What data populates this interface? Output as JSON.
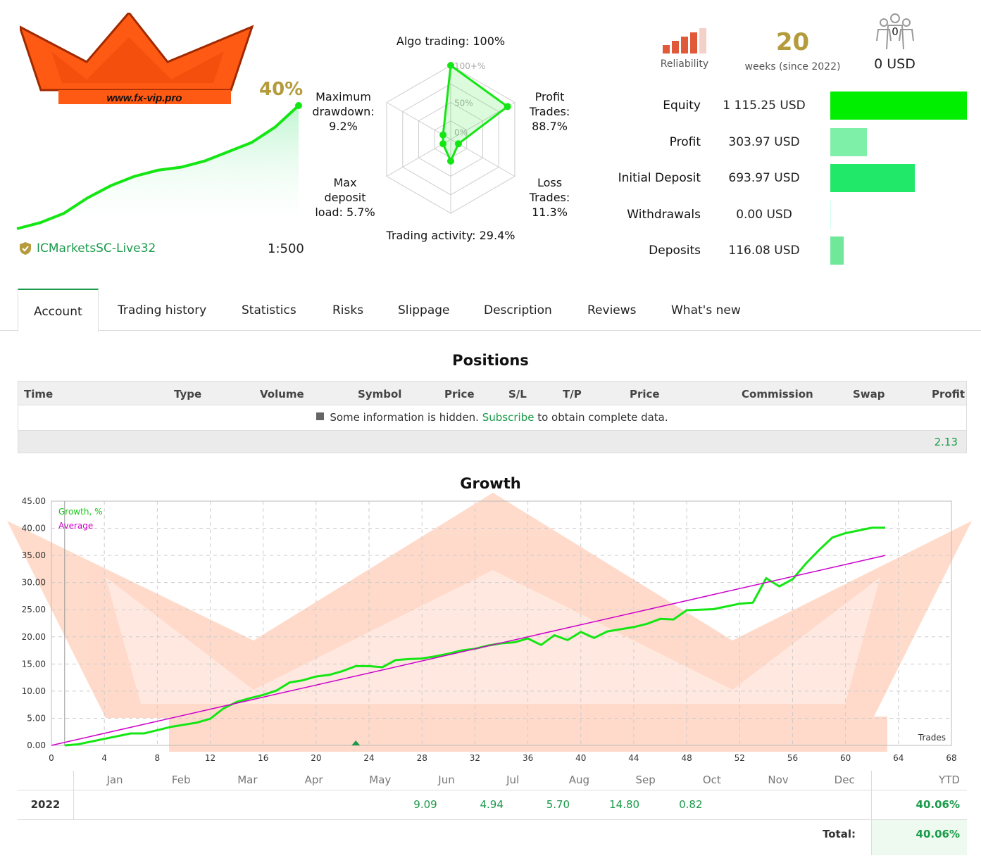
{
  "header": {
    "logo_text": "www.fx-vip.pro",
    "growth_percent": "40%",
    "broker_name": "ICMarketsSC-Live32",
    "leverage": "1:500",
    "colors": {
      "accent": "#1a9a4a",
      "gold": "#b49b3c",
      "growth_line": "#14e614",
      "reliability": "#e05a3a"
    }
  },
  "mini_growth": {
    "values": [
      0,
      2,
      5,
      10,
      14,
      17,
      19,
      20,
      22,
      25,
      28,
      33,
      40
    ]
  },
  "radar": {
    "axes": [
      {
        "label": "Algo trading: 100%",
        "value": 100
      },
      {
        "label": "Profit Trades: 88.7%",
        "value": 88.7
      },
      {
        "label": "Loss Trades: 11.3%",
        "value": 11.3
      },
      {
        "label": "Trading activity: 29.4%",
        "value": 29.4
      },
      {
        "label": "Max deposit load: 5.7%",
        "value": 5.7
      },
      {
        "label": "Maximum drawdown: 9.2%",
        "value": 9.2
      }
    ],
    "ring_labels": [
      "100+%",
      "50%",
      "0%"
    ],
    "label_lines": {
      "algo": "Algo trading: 100%",
      "profit_1": "Profit",
      "profit_2": "Trades:",
      "profit_3": "88.7%",
      "loss_1": "Loss",
      "loss_2": "Trades:",
      "loss_3": "11.3%",
      "activity": "Trading activity: 29.4%",
      "load_1": "Max",
      "load_2": "deposit",
      "load_3": "load: 5.7%",
      "dd_1": "Maximum",
      "dd_2": "drawdown:",
      "dd_3": "9.2%"
    }
  },
  "summary": {
    "reliability_label": "Reliability",
    "weeks_value": "20",
    "weeks_label": "weeks (since 2022)",
    "subscribers_count": "0",
    "subscribers_usd": "0 USD",
    "reliability_level": 4,
    "stats": [
      {
        "label": "Equity",
        "value": "1 115.25 USD",
        "fraction": 1.0,
        "color": "#00ee00"
      },
      {
        "label": "Profit",
        "value": "303.97 USD",
        "fraction": 0.27,
        "color": "#7ef0a8"
      },
      {
        "label": "Initial Deposit",
        "value": "693.97 USD",
        "fraction": 0.62,
        "color": "#22e86a"
      },
      {
        "label": "Withdrawals",
        "value": "0.00 USD",
        "fraction": 0.0,
        "color": "#7ef0a8"
      },
      {
        "label": "Deposits",
        "value": "116.08 USD",
        "fraction": 0.1,
        "color": "#6fe89a"
      }
    ]
  },
  "tabs": [
    "Account",
    "Trading history",
    "Statistics",
    "Risks",
    "Slippage",
    "Description",
    "Reviews",
    "What's new"
  ],
  "positions": {
    "title": "Positions",
    "columns": [
      "Time",
      "Type",
      "Volume",
      "Symbol",
      "Price",
      "S/L",
      "T/P",
      "Price",
      "Commission",
      "Swap",
      "Profit"
    ],
    "info_pre": "Some information is hidden.",
    "info_link": "Subscribe",
    "info_post": "to obtain complete data.",
    "total_profit": "2.13"
  },
  "growth": {
    "title": "Growth",
    "legend_growth": "Growth, %",
    "legend_average": "Average",
    "x_axis_label": "Trades",
    "y_ticks": [
      "45.00",
      "40.00",
      "35.00",
      "30.00",
      "25.00",
      "20.00",
      "15.00",
      "10.00",
      "5.00",
      "0.00"
    ],
    "x_ticks": [
      "0",
      "4",
      "8",
      "12",
      "16",
      "20",
      "24",
      "28",
      "32",
      "36",
      "40",
      "44",
      "48",
      "52",
      "56",
      "60",
      "64",
      "68"
    ]
  },
  "chart_data": {
    "type": "line",
    "title": "Growth",
    "xlabel": "Trades",
    "ylabel": "",
    "xlim": [
      0,
      68
    ],
    "ylim": [
      0,
      45
    ],
    "grid": true,
    "legend_placement": "top-left",
    "series": [
      {
        "name": "Growth, %",
        "color": "#14e614",
        "x": [
          1,
          2,
          3,
          4,
          5,
          6,
          7,
          8,
          9,
          10,
          11,
          12,
          13,
          14,
          15,
          16,
          17,
          18,
          19,
          20,
          21,
          22,
          23,
          24,
          25,
          26,
          27,
          28,
          29,
          30,
          31,
          32,
          33,
          34,
          35,
          36,
          37,
          38,
          39,
          40,
          41,
          42,
          43,
          44,
          45,
          46,
          47,
          48,
          49,
          50,
          51,
          52,
          53,
          54,
          55,
          56,
          57,
          58,
          59,
          60,
          61,
          62,
          63
        ],
        "y": [
          0,
          0.2,
          0.7,
          1.2,
          1.7,
          2.2,
          2.2,
          2.8,
          3.4,
          3.8,
          4.2,
          4.9,
          6.8,
          8.0,
          8.7,
          9.3,
          10.1,
          11.6,
          12.0,
          12.7,
          13.0,
          13.7,
          14.6,
          14.6,
          14.4,
          15.7,
          15.9,
          16.0,
          16.4,
          16.9,
          17.5,
          17.8,
          18.4,
          18.8,
          19.0,
          19.7,
          18.5,
          20.3,
          19.4,
          20.9,
          19.8,
          21.0,
          21.4,
          21.8,
          22.4,
          23.3,
          23.2,
          24.9,
          25.0,
          25.1,
          25.6,
          26.1,
          26.3,
          30.8,
          29.3,
          30.6,
          33.5,
          36.0,
          38.3,
          39.1,
          39.6,
          40.1,
          40.1
        ]
      },
      {
        "name": "Average",
        "color": "#cc00cc",
        "x": [
          0,
          63
        ],
        "y": [
          0,
          35
        ]
      }
    ]
  },
  "monthly": {
    "months": [
      "Jan",
      "Feb",
      "Mar",
      "Apr",
      "May",
      "Jun",
      "Jul",
      "Aug",
      "Sep",
      "Oct",
      "Nov",
      "Dec"
    ],
    "ytd_label": "YTD",
    "year": "2022",
    "values": [
      "",
      "",
      "",
      "",
      "",
      "9.09",
      "4.94",
      "5.70",
      "14.80",
      "0.82",
      "",
      ""
    ],
    "ytd": "40.06%",
    "total_label": "Total:",
    "total": "40.06%"
  }
}
